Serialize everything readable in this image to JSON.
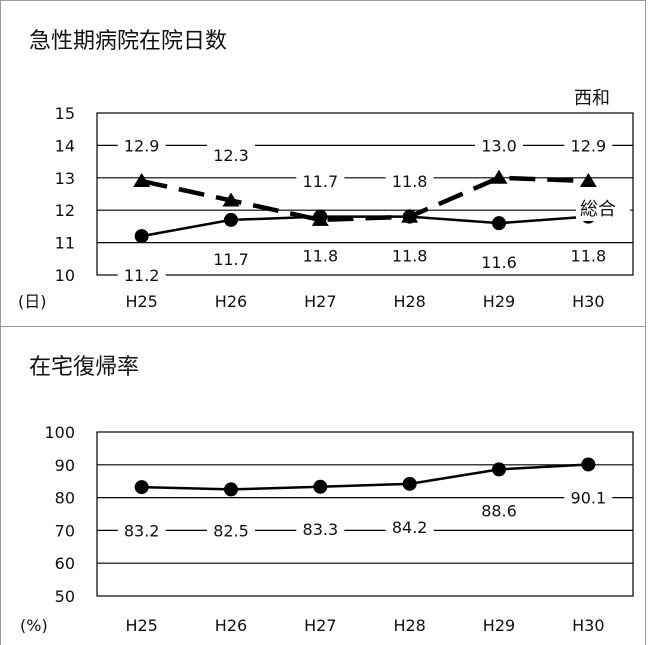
{
  "chart_data": [
    {
      "type": "line",
      "title": "急性期病院在院日数",
      "unit_label": "(日)",
      "categories": [
        "H25",
        "H26",
        "H27",
        "H28",
        "H29",
        "H30"
      ],
      "ylim": [
        10,
        15
      ],
      "yticks": [
        10,
        11,
        12,
        13,
        14,
        15
      ],
      "grid": true,
      "series": [
        {
          "name": "西和",
          "marker": "triangle",
          "line": "dashed",
          "values": [
            12.9,
            12.3,
            11.7,
            11.8,
            13.0,
            12.9
          ],
          "labels": [
            "12.9",
            "12.3",
            "11.7",
            "11.8",
            "13.0",
            "12.9"
          ],
          "label_y": [
            14.0,
            13.7,
            12.9,
            12.9,
            14.0,
            14.0
          ]
        },
        {
          "name": "総合",
          "marker": "circle",
          "line": "solid",
          "values": [
            11.2,
            11.7,
            11.8,
            11.8,
            11.6,
            11.8
          ],
          "labels": [
            "11.2",
            "11.7",
            "11.8",
            "11.8",
            "11.6",
            "11.8"
          ],
          "label_y": [
            10.0,
            10.5,
            10.6,
            10.6,
            10.4,
            10.6
          ]
        }
      ]
    },
    {
      "type": "line",
      "title": "在宅復帰率",
      "unit_label": "(%)",
      "categories": [
        "H25",
        "H26",
        "H27",
        "H28",
        "H29",
        "H30"
      ],
      "ylim": [
        50,
        100
      ],
      "yticks": [
        50,
        60,
        70,
        80,
        90,
        100
      ],
      "grid": true,
      "series": [
        {
          "marker": "circle",
          "line": "solid",
          "values": [
            83.2,
            82.5,
            83.3,
            84.2,
            88.6,
            90.1
          ],
          "labels": [
            "83.2",
            "82.5",
            "83.3",
            "84.2",
            "88.6",
            "90.1"
          ],
          "label_y": [
            70.0,
            70.0,
            70.5,
            71.0,
            76.0,
            80.0
          ]
        }
      ]
    }
  ]
}
